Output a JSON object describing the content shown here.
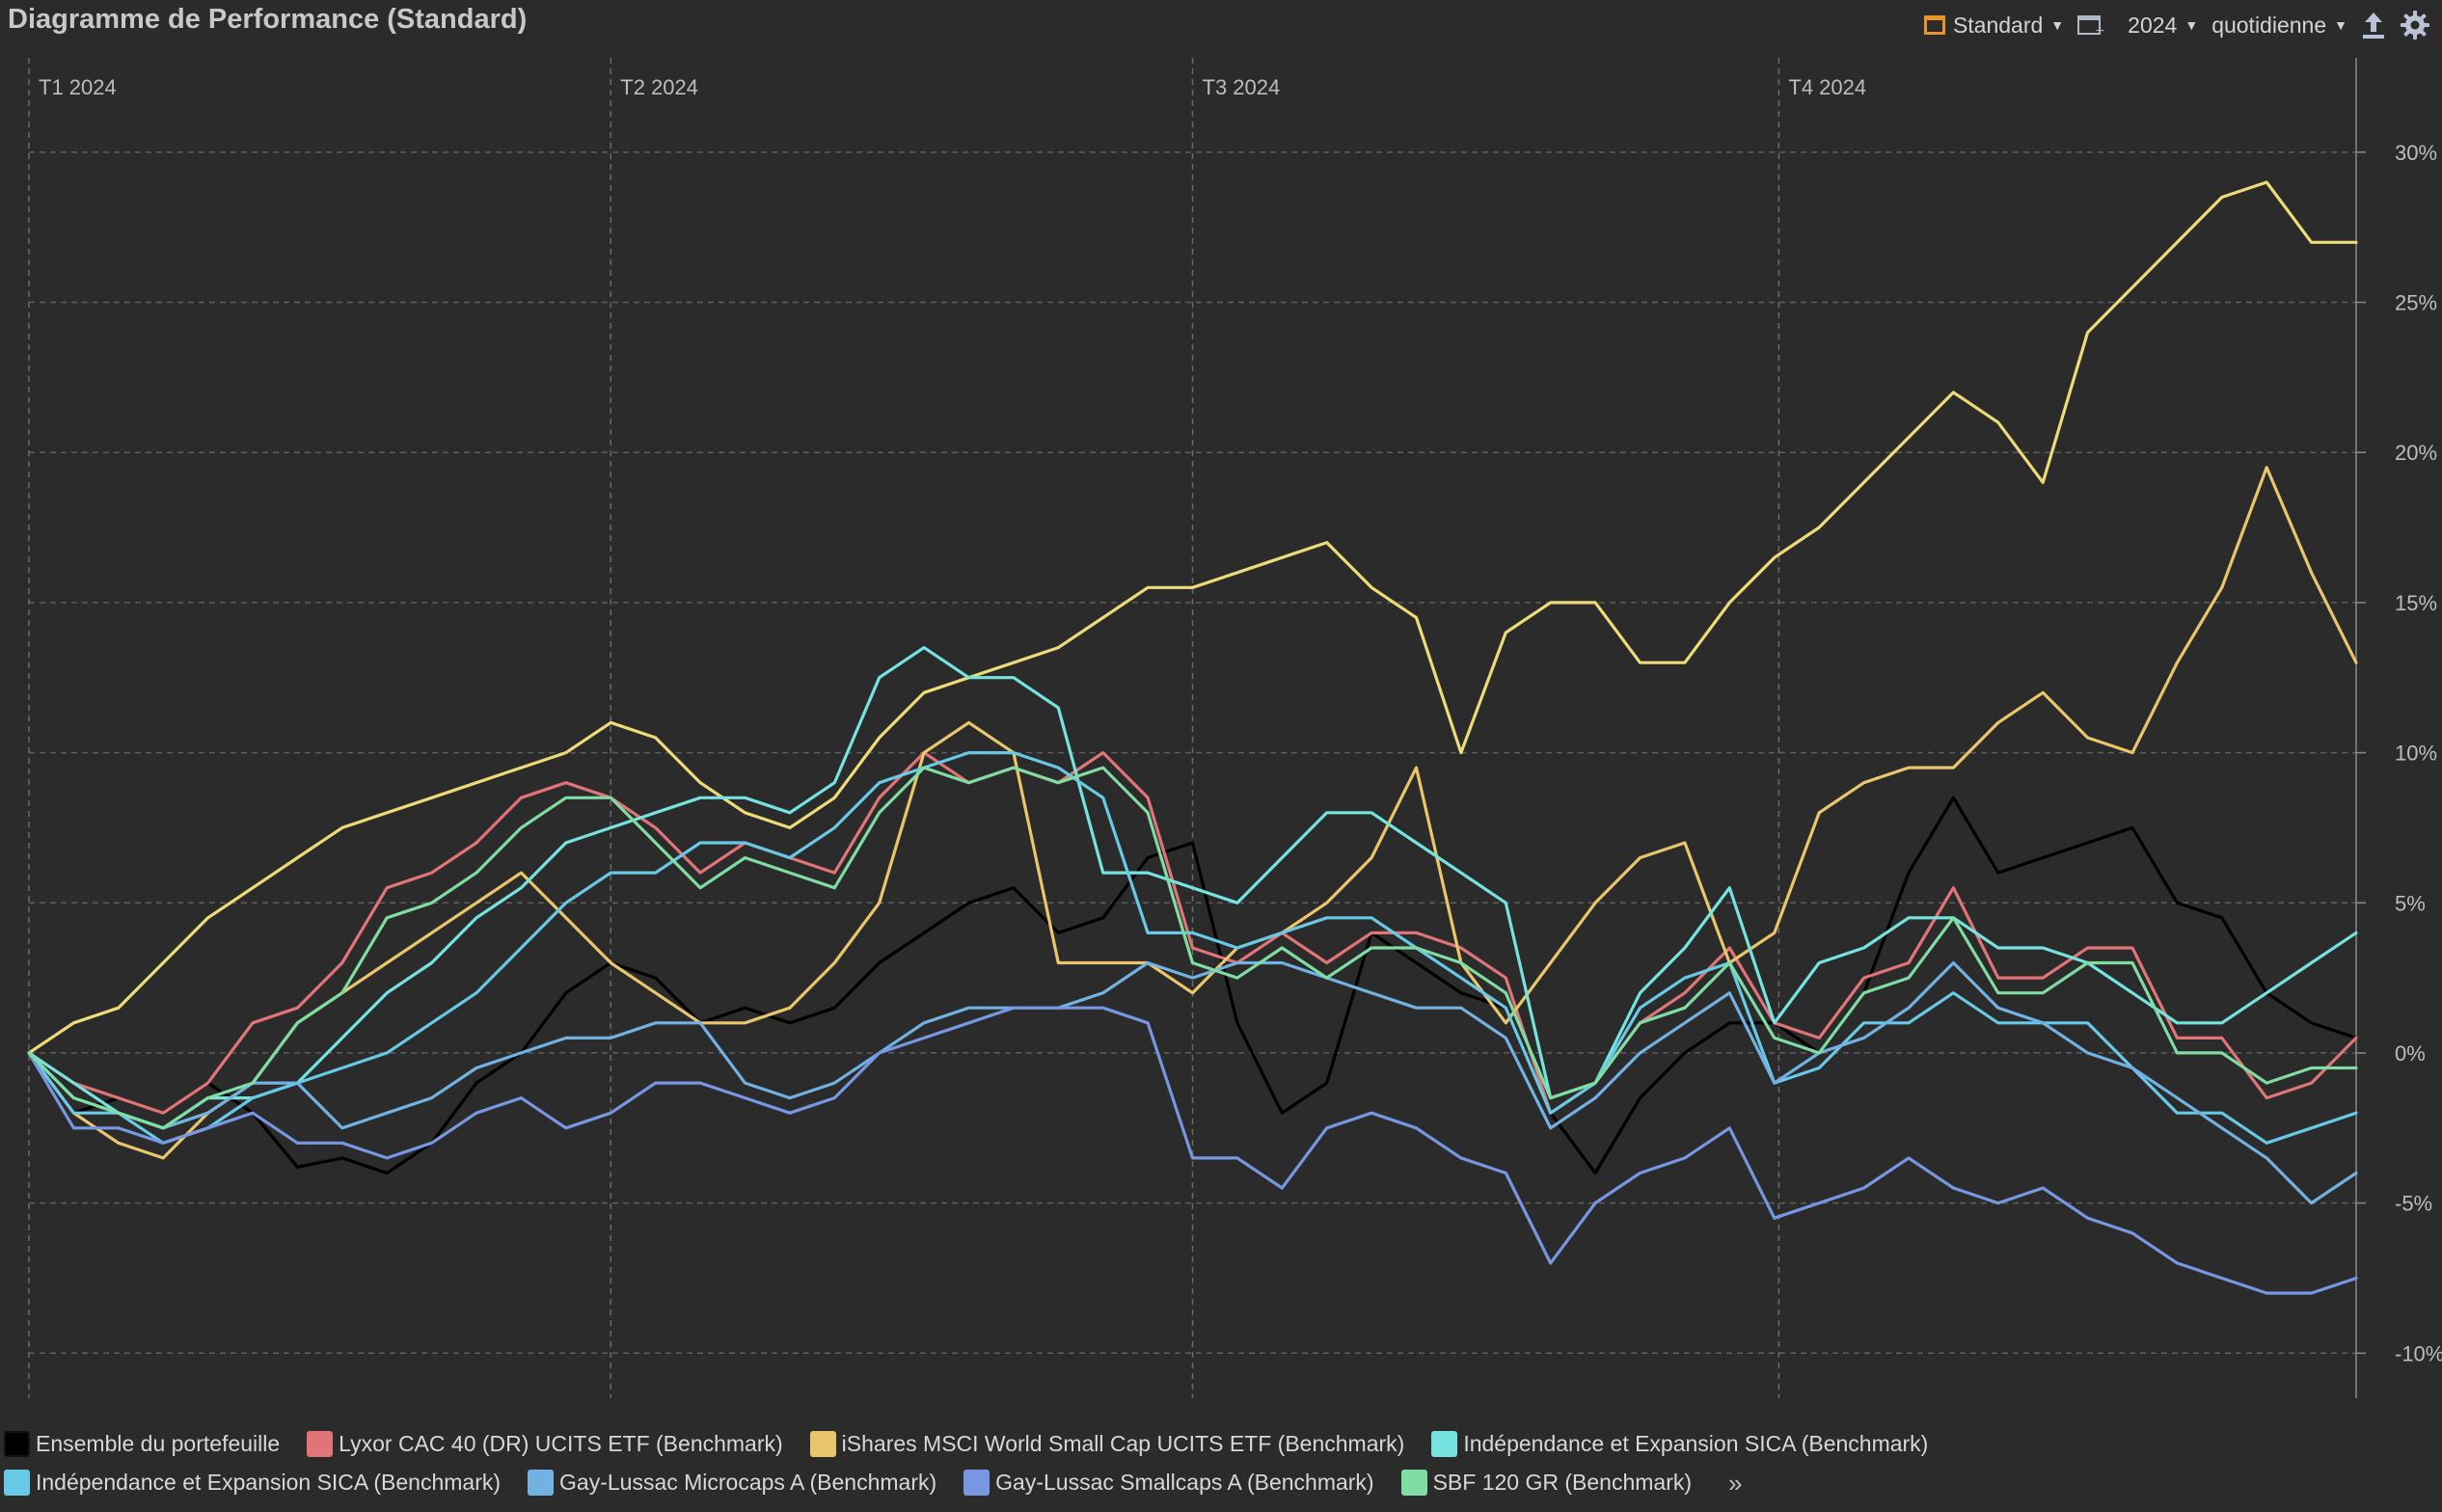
{
  "header": {
    "title": "Diagramme de Performance (Standard)",
    "standard_label": "Standard",
    "year_label": "2024",
    "frequency_label": "quotidienne",
    "icons": [
      "standard-icon",
      "window-add-icon",
      "upload-icon",
      "gear-icon"
    ]
  },
  "legend": {
    "items": [
      {
        "label": "Ensemble du portefeuille",
        "color": "#000000"
      },
      {
        "label": "Lyxor CAC 40 (DR) UCITS ETF (Benchmark)",
        "color": "#e07476"
      },
      {
        "label": "iShares MSCI World Small Cap UCITS ETF (Benchmark)",
        "color": "#e9c66c"
      },
      {
        "label": "Indépendance et Expansion SICA (Benchmark)",
        "color": "#75e3df"
      },
      {
        "label": "Indépendance et Expansion SICA (Benchmark)",
        "color": "#68c9e6"
      },
      {
        "label": "Gay-Lussac Microcaps A (Benchmark)",
        "color": "#72b2e2"
      },
      {
        "label": "Gay-Lussac Smallcaps A (Benchmark)",
        "color": "#7797e3"
      },
      {
        "label": "SBF 120 GR (Benchmark)",
        "color": "#7fdca3"
      }
    ],
    "more_label": "»"
  },
  "chart_data": {
    "type": "line",
    "title": "Diagramme de Performance (Standard)",
    "x_unit": "week of 2024",
    "x": [
      0,
      1,
      2,
      3,
      4,
      5,
      6,
      7,
      8,
      9,
      10,
      11,
      12,
      13,
      14,
      15,
      16,
      17,
      18,
      19,
      20,
      21,
      22,
      23,
      24,
      25,
      26,
      27,
      28,
      29,
      30,
      31,
      32,
      33,
      34,
      35,
      36,
      37,
      38,
      39,
      40,
      41,
      42,
      43,
      44,
      45,
      46,
      47,
      48,
      49,
      50,
      51,
      52
    ],
    "quarter_labels": [
      {
        "label": "T1 2024",
        "week": 0
      },
      {
        "label": "T2 2024",
        "week": 13
      },
      {
        "label": "T3 2024",
        "week": 26
      },
      {
        "label": "T4 2024",
        "week": 39.1
      }
    ],
    "ylim": [
      -11.5,
      32.5
    ],
    "yticks": [
      30,
      25,
      20,
      15,
      10,
      5,
      0,
      -5,
      -10
    ],
    "ytick_labels": [
      "30%",
      "25%",
      "20%",
      "15%",
      "10%",
      "5%",
      "0%",
      "-5%",
      "-10%"
    ],
    "grid": true,
    "series": [
      {
        "name": "Ensemble du portefeuille",
        "color": "#000000",
        "values": [
          0,
          -2,
          -1.5,
          -2,
          -1,
          -2,
          -3.8,
          -3.5,
          -4,
          -3,
          -1,
          0,
          2,
          3,
          2.5,
          1,
          1.5,
          1,
          1.5,
          3,
          4,
          5,
          5.5,
          4,
          4.5,
          6.5,
          7,
          1,
          -2,
          -1,
          4,
          3,
          2,
          1.5,
          -2,
          -4,
          -1.5,
          0,
          1,
          1,
          0,
          2,
          6,
          8.5,
          6,
          6.5,
          7,
          7.5,
          5,
          4.5,
          2,
          1,
          0.5
        ]
      },
      {
        "name": "Lyxor CAC 40 (DR) UCITS ETF (Benchmark)",
        "color": "#e07476",
        "values": [
          0,
          -1,
          -1.5,
          -2,
          -1,
          1,
          1.5,
          3,
          5.5,
          6,
          7,
          8.5,
          9,
          8.5,
          7.5,
          6,
          7,
          6.5,
          6,
          8.5,
          10,
          9,
          9.5,
          9,
          10,
          8.5,
          3.5,
          3,
          4,
          3,
          4,
          4,
          3.5,
          2.5,
          -2,
          -1,
          1,
          2,
          3.5,
          1,
          0.5,
          2.5,
          3,
          5.5,
          2.5,
          2.5,
          3.5,
          3.5,
          0.5,
          0.5,
          -1.5,
          -1,
          0.5
        ]
      },
      {
        "name": "iShares MSCI World Small Cap UCITS ETF (Benchmark)",
        "color": "#eddb78",
        "values": [
          0,
          1,
          1.5,
          3,
          4.5,
          5.5,
          6.5,
          7.5,
          8,
          8.5,
          9,
          9.5,
          10,
          11,
          10.5,
          9,
          8,
          7.5,
          8.5,
          10.5,
          12,
          12.5,
          13,
          13.5,
          14.5,
          15.5,
          15.5,
          16,
          16.5,
          17,
          15.5,
          14.5,
          10,
          14,
          15,
          15,
          13,
          13,
          15,
          16.5,
          17.5,
          19,
          20.5,
          22,
          21,
          19,
          24,
          25.5,
          27,
          28.5,
          29,
          27,
          27
        ]
      },
      {
        "name": "iShares MSCI World Small Cap UCITS ETF (Benchmark) (second series)",
        "color": "#e9c66c",
        "values": [
          0,
          -2,
          -3,
          -3.5,
          -2,
          -1,
          1,
          2,
          3,
          4,
          5,
          6,
          4.5,
          3,
          2,
          1,
          1,
          1.5,
          3,
          5,
          10,
          11,
          10,
          3,
          3,
          3,
          2,
          3.5,
          4,
          5,
          6.5,
          9.5,
          3,
          1,
          3,
          5,
          6.5,
          7,
          3,
          4,
          8,
          9,
          9.5,
          9.5,
          11,
          12,
          10.5,
          10,
          13,
          15.5,
          19.5,
          16,
          13
        ]
      },
      {
        "name": "Indépendance et Expansion SICA (Benchmark)",
        "color": "#75e3df",
        "values": [
          0,
          -1,
          -2,
          -2.5,
          -1.5,
          -1.5,
          -1,
          0.5,
          2,
          3,
          4.5,
          5.5,
          7,
          7.5,
          8,
          8.5,
          8.5,
          8,
          9,
          12.5,
          13.5,
          12.5,
          12.5,
          11.5,
          6,
          6,
          5.5,
          5,
          6.5,
          8,
          8,
          7,
          6,
          5,
          -1.5,
          -1,
          2,
          3.5,
          5.5,
          1,
          3,
          3.5,
          4.5,
          4.5,
          3.5,
          3.5,
          3,
          2,
          1,
          1,
          2,
          3,
          4
        ]
      },
      {
        "name": "Indépendance et Expansion SICA (Benchmark) (second series)",
        "color": "#68c9e6",
        "values": [
          0,
          -2,
          -2,
          -3,
          -2.5,
          -1.5,
          -1,
          -0.5,
          0,
          1,
          2,
          3.5,
          5,
          6,
          6,
          7,
          7,
          6.5,
          7.5,
          9,
          9.5,
          10,
          10,
          9.5,
          8.5,
          4,
          4,
          3.5,
          4,
          4.5,
          4.5,
          3.5,
          2.5,
          1.5,
          -2,
          -1,
          1.5,
          2.5,
          3,
          -1,
          -0.5,
          1,
          1,
          2,
          1,
          1,
          1,
          -0.5,
          -2,
          -2,
          -3,
          -2.5,
          -2
        ]
      },
      {
        "name": "Gay-Lussac Microcaps A (Benchmark)",
        "color": "#72b2e2",
        "values": [
          0,
          -1.5,
          -2,
          -2.5,
          -2,
          -1,
          -1,
          -2.5,
          -2,
          -1.5,
          -0.5,
          0,
          0.5,
          0.5,
          1,
          1,
          -1,
          -1.5,
          -1,
          0,
          1,
          1.5,
          1.5,
          1.5,
          2,
          3,
          2.5,
          3,
          3,
          2.5,
          2,
          1.5,
          1.5,
          0.5,
          -2.5,
          -1.5,
          0,
          1,
          2,
          -1,
          0,
          0.5,
          1.5,
          3,
          1.5,
          1,
          0,
          -0.5,
          -1.5,
          -2.5,
          -3.5,
          -5,
          -4
        ]
      },
      {
        "name": "Gay-Lussac Smallcaps A (Benchmark)",
        "color": "#7797e3",
        "values": [
          0,
          -2.5,
          -2.5,
          -3,
          -2.5,
          -2,
          -3,
          -3,
          -3.5,
          -3,
          -2,
          -1.5,
          -2.5,
          -2,
          -1,
          -1,
          -1.5,
          -2,
          -1.5,
          0,
          0.5,
          1,
          1.5,
          1.5,
          1.5,
          1,
          -3.5,
          -3.5,
          -4.5,
          -2.5,
          -2,
          -2.5,
          -3.5,
          -4,
          -7,
          -5,
          -4,
          -3.5,
          -2.5,
          -5.5,
          -5,
          -4.5,
          -3.5,
          -4.5,
          -5,
          -4.5,
          -5.5,
          -6,
          -7,
          -7.5,
          -8,
          -8,
          -7.5
        ]
      },
      {
        "name": "SBF 120 GR (Benchmark)",
        "color": "#7fdca3",
        "values": [
          0,
          -1.5,
          -2,
          -2.5,
          -1.5,
          -1,
          1,
          2,
          4.5,
          5,
          6,
          7.5,
          8.5,
          8.5,
          7,
          5.5,
          6.5,
          6,
          5.5,
          8,
          9.5,
          9,
          9.5,
          9,
          9.5,
          8,
          3,
          2.5,
          3.5,
          2.5,
          3.5,
          3.5,
          3,
          2,
          -1.5,
          -1,
          1,
          1.5,
          3,
          0.5,
          0,
          2,
          2.5,
          4.5,
          2,
          2,
          3,
          3,
          0,
          0,
          -1,
          -0.5,
          -0.5
        ]
      }
    ]
  }
}
